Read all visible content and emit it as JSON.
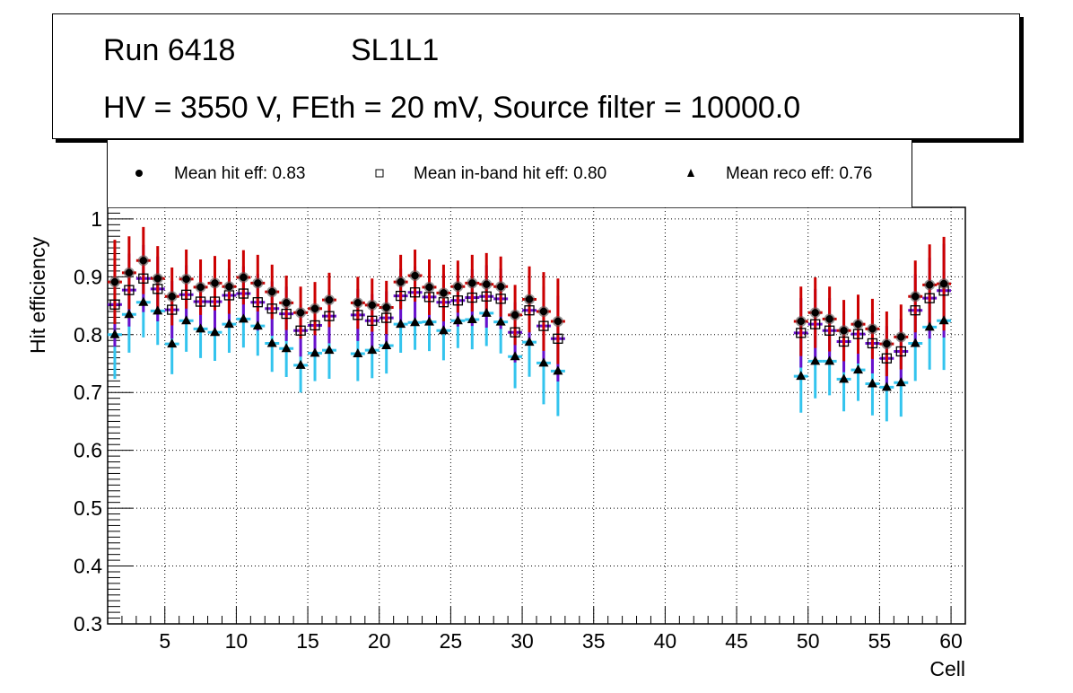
{
  "title_box": {
    "line1_run": "Run 6418",
    "line1_layer": "SL1L1",
    "line2": "HV = 3550 V, FEth = 20 mV, Source filter = 10000.0"
  },
  "legend": [
    {
      "marker": "filled-circle",
      "label": "Mean hit  eff: 0.83"
    },
    {
      "marker": "open-square",
      "label": "Mean in-band hit eff: 0.80"
    },
    {
      "marker": "filled-triangle",
      "label": "Mean reco eff: 0.76"
    }
  ],
  "colors": {
    "hit_err": "#cc0000",
    "inband_err": "#6a0fcc",
    "reco_err": "#33c4ee",
    "grid": "#000000"
  },
  "chart_data": {
    "type": "scatter",
    "title": "Run 6418 SL1L1 — HV = 3550 V, FEth = 20 mV, Source filter = 10000.0",
    "xlabel": "Cell",
    "ylabel": "Hit efficiency",
    "xlim": [
      1,
      61
    ],
    "ylim": [
      0.3,
      1.02
    ],
    "xticks": [
      5,
      10,
      15,
      20,
      25,
      30,
      35,
      40,
      45,
      50,
      55,
      60
    ],
    "yticks": [
      0.3,
      0.4,
      0.5,
      0.6,
      0.7,
      0.8,
      0.9,
      1
    ],
    "ytick_labels": [
      "0.3",
      "0.4",
      "0.5",
      "0.6",
      "0.7",
      "0.8",
      "0.9",
      "1"
    ],
    "grid": true,
    "legend_position": "top",
    "x": [
      1.5,
      2.5,
      3.5,
      4.5,
      5.5,
      6.5,
      7.5,
      8.5,
      9.5,
      10.5,
      11.5,
      12.5,
      13.5,
      14.5,
      15.5,
      16.5,
      18.5,
      19.5,
      20.5,
      21.5,
      22.5,
      23.5,
      24.5,
      25.5,
      26.5,
      27.5,
      28.5,
      29.5,
      30.5,
      31.5,
      32.5,
      49.5,
      50.5,
      51.5,
      52.5,
      53.5,
      54.5,
      55.5,
      56.5,
      57.5,
      58.5,
      59.5
    ],
    "errors": [
      0.073,
      0.063,
      0.058,
      0.056,
      0.05,
      0.051,
      0.048,
      0.047,
      0.047,
      0.047,
      0.049,
      0.047,
      0.047,
      0.045,
      0.046,
      0.047,
      0.045,
      0.046,
      0.046,
      0.047,
      0.045,
      0.048,
      0.049,
      0.045,
      0.049,
      0.054,
      0.052,
      0.052,
      0.057,
      0.068,
      0.074,
      0.06,
      0.061,
      0.056,
      0.053,
      0.051,
      0.052,
      0.056,
      0.056,
      0.062,
      0.07,
      0.081
    ],
    "series": [
      {
        "name": "Mean hit  eff: 0.83",
        "marker": "filled-circle",
        "values": [
          0.891,
          0.907,
          0.928,
          0.897,
          0.866,
          0.896,
          0.882,
          0.889,
          0.883,
          0.899,
          0.889,
          0.874,
          0.855,
          0.838,
          0.845,
          0.86,
          0.855,
          0.851,
          0.847,
          0.891,
          0.902,
          0.882,
          0.872,
          0.883,
          0.889,
          0.887,
          0.883,
          0.834,
          0.861,
          0.84,
          0.823,
          0.823,
          0.838,
          0.827,
          0.807,
          0.818,
          0.81,
          0.784,
          0.796,
          0.866,
          0.886,
          0.888
        ]
      },
      {
        "name": "Mean in-band hit eff: 0.80",
        "marker": "open-square",
        "values": [
          0.852,
          0.877,
          0.897,
          0.879,
          0.843,
          0.869,
          0.857,
          0.857,
          0.868,
          0.871,
          0.856,
          0.845,
          0.836,
          0.807,
          0.816,
          0.832,
          0.834,
          0.824,
          0.829,
          0.867,
          0.873,
          0.865,
          0.856,
          0.859,
          0.864,
          0.866,
          0.862,
          0.804,
          0.842,
          0.815,
          0.793,
          0.803,
          0.818,
          0.807,
          0.788,
          0.801,
          0.785,
          0.759,
          0.771,
          0.842,
          0.863,
          0.876
        ]
      },
      {
        "name": "Mean reco eff: 0.76",
        "marker": "filled-triangle",
        "values": [
          0.8,
          0.835,
          0.856,
          0.841,
          0.784,
          0.824,
          0.81,
          0.804,
          0.818,
          0.827,
          0.815,
          0.785,
          0.776,
          0.747,
          0.768,
          0.773,
          0.767,
          0.773,
          0.781,
          0.818,
          0.821,
          0.822,
          0.807,
          0.824,
          0.826,
          0.837,
          0.822,
          0.762,
          0.787,
          0.751,
          0.737,
          0.728,
          0.754,
          0.754,
          0.723,
          0.739,
          0.715,
          0.709,
          0.717,
          0.785,
          0.813,
          0.824
        ]
      }
    ]
  }
}
